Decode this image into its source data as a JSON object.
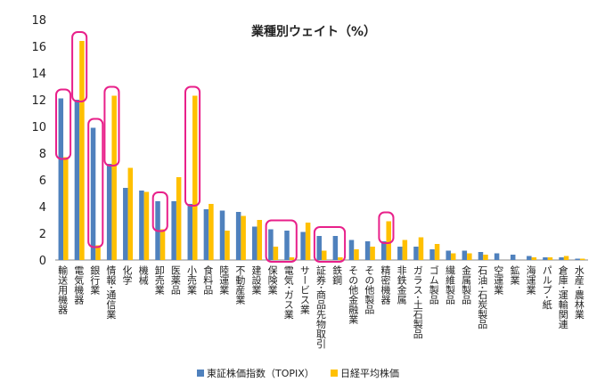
{
  "chart_data": {
    "type": "bar",
    "title": "業種別ウェイト（%）",
    "xlabel": "",
    "ylabel": "",
    "ylim": [
      0,
      18
    ],
    "yticks": [
      0,
      2,
      4,
      6,
      8,
      10,
      12,
      14,
      16,
      18
    ],
    "grid": false,
    "legend_position": "bottom",
    "colors": {
      "topix": "#4f81bd",
      "nikkei": "#ffc000",
      "highlight": "#e8208a"
    },
    "categories": [
      "輸送用機器",
      "電気機器",
      "銀行業",
      "情報･通信業",
      "化学",
      "機械",
      "卸売業",
      "医薬品",
      "小売業",
      "食料品",
      "陸運業",
      "不動産業",
      "建設業",
      "保険業",
      "電気･ガス業",
      "サービス業",
      "証券･商品先物取引",
      "鉄鋼",
      "その他金融業",
      "その他製品",
      "精密機器",
      "非鉄金属",
      "ガラス･土石製品",
      "ゴム製品",
      "繊維製品",
      "金属製品",
      "石油･石炭製品",
      "空運業",
      "鉱業",
      "海運業",
      "パルプ･紙",
      "倉庫･運輸関連",
      "水産･農林業"
    ],
    "series": [
      {
        "name": "東証株価指数（TOPIX）",
        "values": [
          12.1,
          12.0,
          9.9,
          7.2,
          5.4,
          5.2,
          4.4,
          4.4,
          4.2,
          3.8,
          3.7,
          3.6,
          2.5,
          2.3,
          2.2,
          2.1,
          1.8,
          1.8,
          1.5,
          1.4,
          1.4,
          1.0,
          1.0,
          0.8,
          0.7,
          0.7,
          0.6,
          0.5,
          0.4,
          0.3,
          0.2,
          0.2,
          0.1
        ]
      },
      {
        "name": "日経平均株価",
        "values": [
          7.7,
          16.4,
          1.1,
          12.3,
          6.9,
          5.1,
          2.3,
          6.2,
          12.3,
          4.2,
          2.2,
          3.3,
          3.0,
          1.0,
          0.2,
          2.8,
          0.7,
          0.2,
          0.8,
          1.0,
          2.9,
          1.5,
          1.7,
          1.2,
          0.5,
          0.5,
          0.4,
          0.0,
          0.0,
          0.2,
          0.2,
          0.3,
          0.1
        ]
      }
    ],
    "highlighted_categories": [
      "輸送用機器",
      "電気機器",
      "銀行業",
      "情報･通信業",
      "卸売業",
      "小売業",
      "保険業",
      "電気･ガス業",
      "証券･商品先物取引",
      "鉄鋼",
      "精密機器"
    ]
  }
}
